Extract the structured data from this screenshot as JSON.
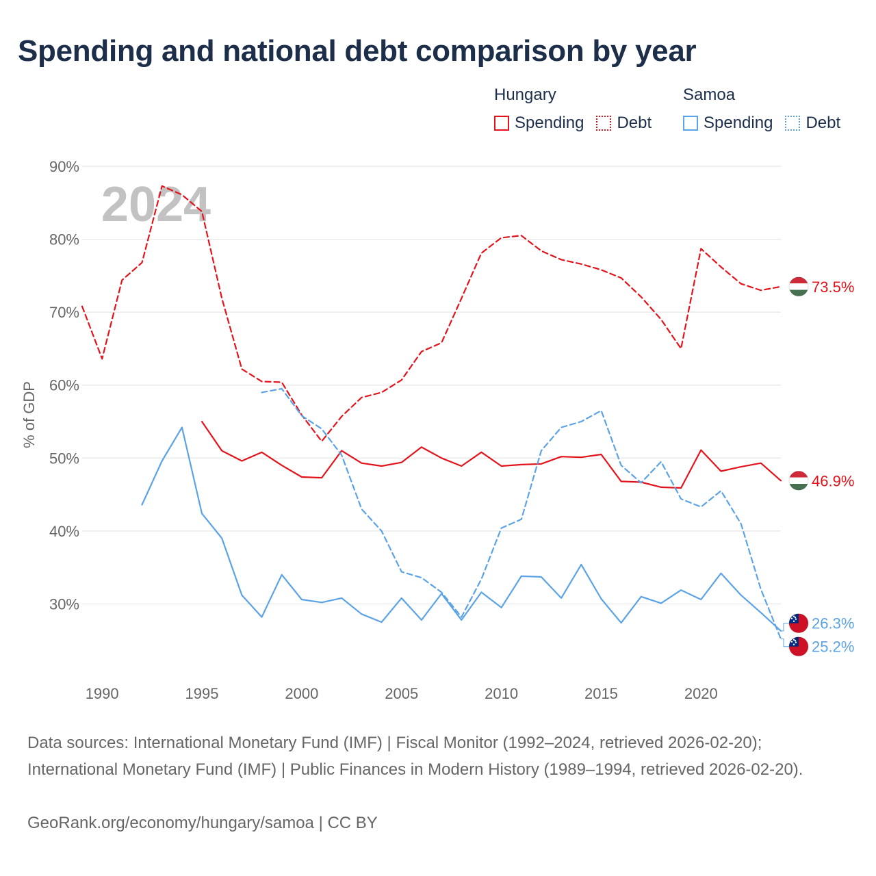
{
  "title": "Spending and national debt comparison by year",
  "legend": {
    "groups": [
      {
        "name": "Hungary",
        "spending_label": "Spending",
        "debt_label": "Debt",
        "color": "#e3131b"
      },
      {
        "name": "Samoa",
        "spending_label": "Spending",
        "debt_label": "Debt",
        "color": "#5ba3e6"
      }
    ]
  },
  "year_watermark": "2024",
  "footer": {
    "sources": "Data sources: International Monetary Fund (IMF) | Fiscal Monitor (1992–2024, retrieved 2026-02-20); International Monetary Fund (IMF) | Public Finances in Modern History (1989–1994, retrieved 2026-02-20).",
    "attribution": "GeoRank.org/economy/hungary/samoa | CC BY"
  },
  "chart_data": {
    "type": "line",
    "ylabel": "% of GDP",
    "xlabel": "",
    "ylim": [
      20,
      90
    ],
    "xlim": [
      1989,
      2024
    ],
    "yticks": [
      30,
      40,
      50,
      60,
      70,
      80,
      90
    ],
    "ytick_labels": [
      "30%",
      "40%",
      "50%",
      "60%",
      "70%",
      "80%",
      "90%"
    ],
    "xticks": [
      1990,
      1995,
      2000,
      2005,
      2010,
      2015,
      2020
    ],
    "xtick_labels": [
      "1990",
      "1995",
      "2000",
      "2005",
      "2010",
      "2015",
      "2020"
    ],
    "grid": true,
    "series": [
      {
        "name": "Hungary Debt",
        "country": "Hungary",
        "kind": "Debt",
        "color": "#e3131b",
        "dashed": true,
        "x": [
          1989,
          1990,
          1991,
          1992,
          1993,
          1994,
          1995,
          1996,
          1997,
          1998,
          1999,
          2000,
          2001,
          2002,
          2003,
          2004,
          2005,
          2006,
          2007,
          2008,
          2009,
          2010,
          2011,
          2012,
          2013,
          2014,
          2015,
          2016,
          2017,
          2018,
          2019,
          2020,
          2021,
          2022,
          2023,
          2024
        ],
        "y": [
          70.8,
          63.6,
          74.4,
          76.8,
          87.3,
          86.1,
          83.8,
          71.9,
          62.2,
          60.5,
          60.4,
          55.9,
          52.3,
          55.7,
          58.3,
          59.0,
          60.7,
          64.6,
          65.8,
          71.9,
          78.1,
          80.2,
          80.5,
          78.4,
          77.2,
          76.6,
          75.8,
          74.7,
          72.1,
          69.0,
          65.0,
          78.7,
          76.2,
          73.9,
          73.0,
          73.5
        ],
        "end_label": "73.5%"
      },
      {
        "name": "Hungary Spending",
        "country": "Hungary",
        "kind": "Spending",
        "color": "#e3131b",
        "dashed": false,
        "x": [
          1995,
          1996,
          1997,
          1998,
          1999,
          2000,
          2001,
          2002,
          2003,
          2004,
          2005,
          2006,
          2007,
          2008,
          2009,
          2010,
          2011,
          2012,
          2013,
          2014,
          2015,
          2016,
          2017,
          2018,
          2019,
          2020,
          2021,
          2022,
          2023,
          2024
        ],
        "y": [
          55.0,
          51.0,
          49.6,
          50.8,
          49.0,
          47.4,
          47.3,
          51.0,
          49.3,
          48.9,
          49.4,
          51.5,
          50.0,
          48.9,
          50.8,
          48.9,
          49.1,
          49.2,
          50.2,
          50.1,
          50.5,
          46.8,
          46.7,
          46.0,
          45.9,
          51.1,
          48.2,
          48.8,
          49.3,
          46.9
        ],
        "end_label": "46.9%"
      },
      {
        "name": "Samoa Debt",
        "country": "Samoa",
        "kind": "Debt",
        "color": "#5ba3e6",
        "dashed": true,
        "x": [
          1998,
          1999,
          2000,
          2001,
          2002,
          2003,
          2004,
          2005,
          2006,
          2007,
          2008,
          2009,
          2010,
          2011,
          2012,
          2013,
          2014,
          2015,
          2016,
          2017,
          2018,
          2019,
          2020,
          2021,
          2022,
          2023,
          2024
        ],
        "y": [
          59.0,
          59.5,
          55.8,
          54.0,
          50.4,
          43.0,
          40.0,
          34.4,
          33.6,
          31.6,
          28.2,
          33.4,
          40.4,
          41.6,
          51.0,
          54.2,
          55.0,
          56.5,
          49.0,
          46.6,
          49.5,
          44.4,
          43.3,
          45.5,
          41.0,
          32.0,
          25.2
        ],
        "end_label": "25.2%"
      },
      {
        "name": "Samoa Spending",
        "country": "Samoa",
        "kind": "Spending",
        "color": "#5ba3e6",
        "dashed": false,
        "x": [
          1992,
          1993,
          1994,
          1995,
          1996,
          1997,
          1998,
          1999,
          2000,
          2001,
          2002,
          2003,
          2004,
          2005,
          2006,
          2007,
          2008,
          2009,
          2010,
          2011,
          2012,
          2013,
          2014,
          2015,
          2016,
          2017,
          2018,
          2019,
          2020,
          2021,
          2022,
          2023,
          2024
        ],
        "y": [
          43.6,
          49.6,
          54.2,
          42.4,
          39.0,
          31.2,
          28.2,
          34.0,
          30.6,
          30.2,
          30.8,
          28.6,
          27.5,
          30.8,
          27.8,
          31.4,
          27.8,
          31.6,
          29.5,
          33.8,
          33.7,
          30.8,
          35.4,
          30.7,
          27.4,
          31.0,
          30.1,
          31.9,
          30.6,
          34.2,
          31.2,
          28.8,
          26.3
        ],
        "end_label": "26.3%"
      }
    ]
  }
}
